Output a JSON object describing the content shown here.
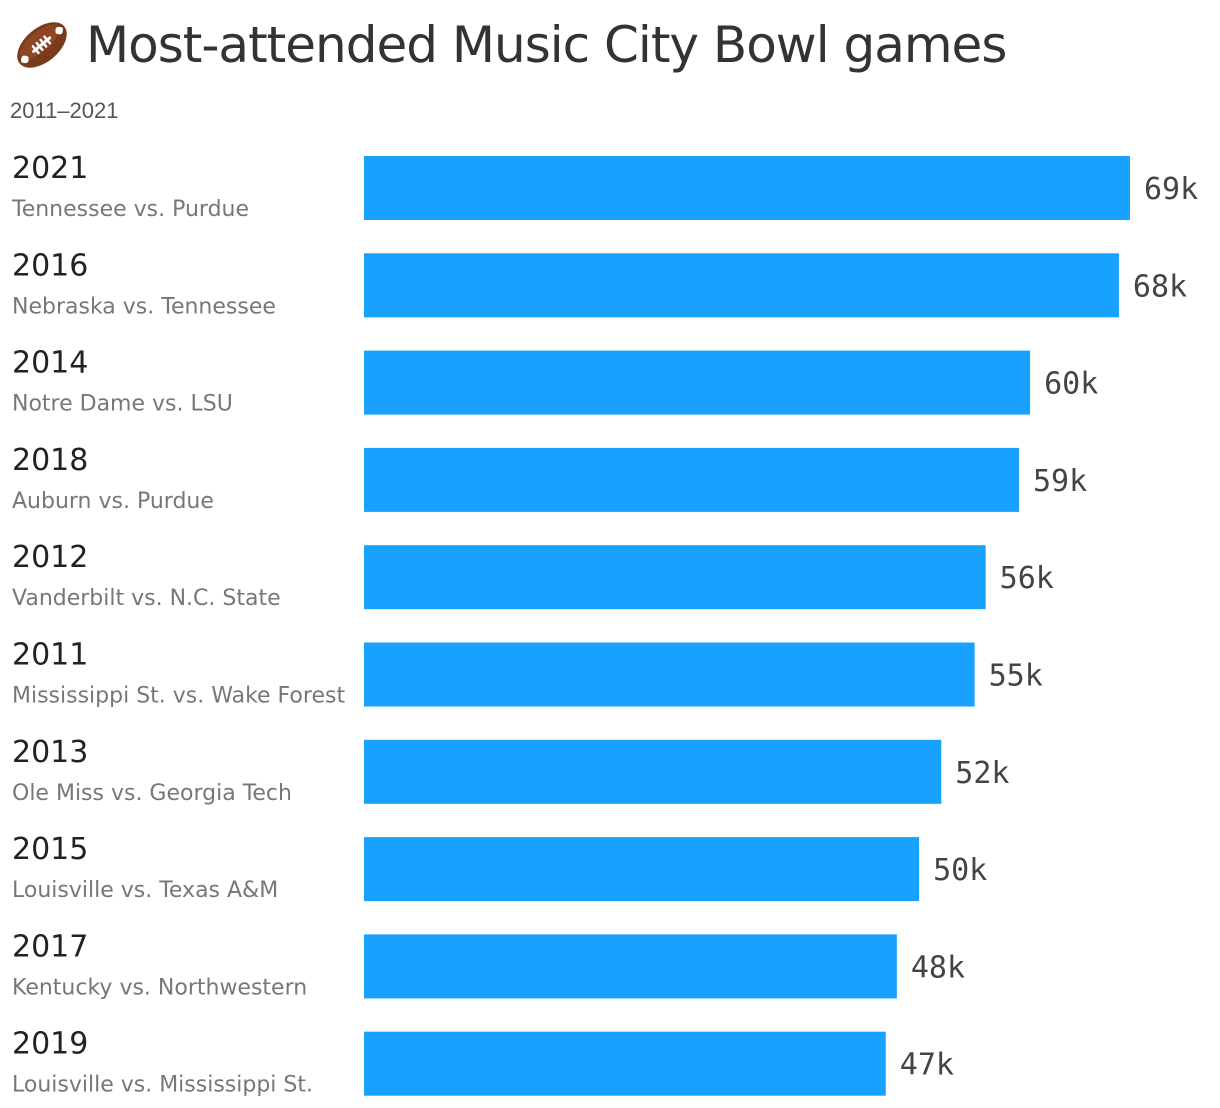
{
  "header": {
    "title": "Most-attended Music City Bowl games",
    "subtitle": "2011–2021",
    "icon": "american-football-icon"
  },
  "colors": {
    "bar": "#18a1ff",
    "title": "#333333",
    "sublabel": "#777777"
  },
  "chart_data": {
    "type": "bar",
    "orientation": "horizontal",
    "title": "Most-attended Music City Bowl games",
    "subtitle": "2011–2021",
    "xlabel": "",
    "ylabel": "",
    "xlim": [
      0,
      69
    ],
    "grid": false,
    "legend": "none",
    "categories": [
      {
        "year": "2021",
        "game": "Tennessee vs. Purdue"
      },
      {
        "year": "2016",
        "game": "Nebraska vs. Tennessee"
      },
      {
        "year": "2014",
        "game": "Notre Dame vs. LSU"
      },
      {
        "year": "2018",
        "game": "Auburn vs. Purdue"
      },
      {
        "year": "2012",
        "game": "Vanderbilt vs. N.C. State"
      },
      {
        "year": "2011",
        "game": "Mississippi St. vs. Wake Forest"
      },
      {
        "year": "2013",
        "game": "Ole Miss vs. Georgia Tech"
      },
      {
        "year": "2015",
        "game": "Louisville vs. Texas A&M"
      },
      {
        "year": "2017",
        "game": "Kentucky vs. Northwestern"
      },
      {
        "year": "2019",
        "game": "Louisville vs. Mississippi St."
      }
    ],
    "values": [
      69,
      68,
      60,
      59,
      56,
      55,
      52,
      50,
      48,
      47
    ],
    "value_labels": [
      "69k",
      "68k",
      "60k",
      "59k",
      "56k",
      "55k",
      "52k",
      "50k",
      "48k",
      "47k"
    ]
  }
}
